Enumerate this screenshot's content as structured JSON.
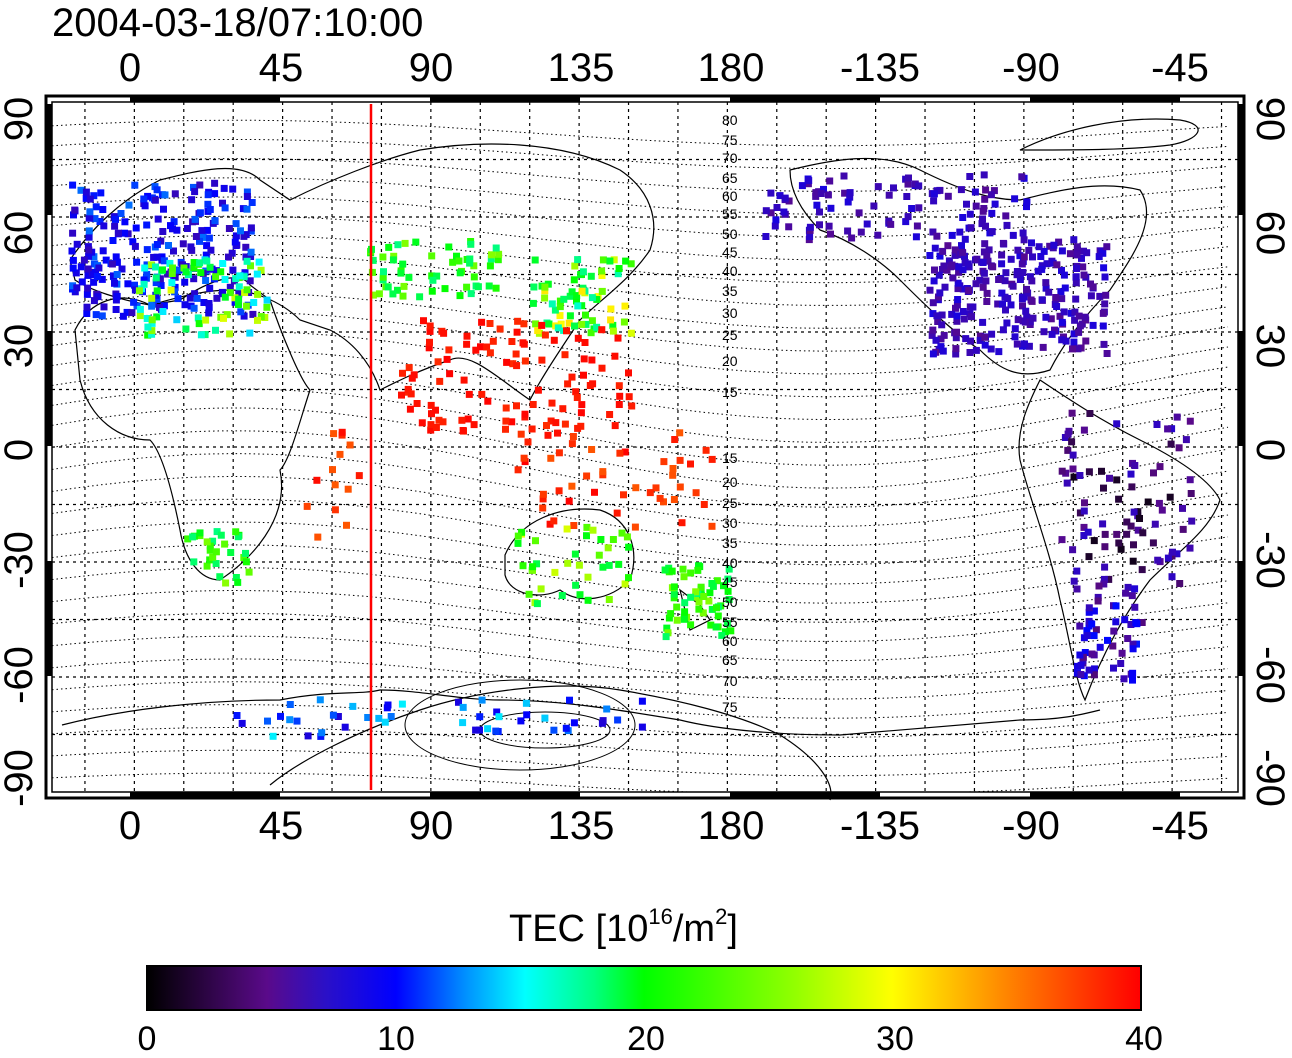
{
  "timestamp": "2004-03-18/07:10:00",
  "lon_labels": [
    "0",
    "45",
    "90",
    "135",
    "180",
    "-135",
    "-90",
    "-45"
  ],
  "lat_labels": [
    "90",
    "60",
    "30",
    "0",
    "-30",
    "-60",
    "-90"
  ],
  "contour_labels": [
    "80",
    "75",
    "70",
    "65",
    "60",
    "55",
    "50",
    "45",
    "40",
    "35",
    "30",
    "25",
    "20",
    "15",
    "15",
    "20",
    "25",
    "30",
    "35",
    "40",
    "45",
    "50",
    "55",
    "60",
    "65",
    "70",
    "75"
  ],
  "colorbar": {
    "title_main": "TEC  [10",
    "title_sup1": "16",
    "title_mid": "/m",
    "title_sup2": "2",
    "title_end": "]",
    "ticks": [
      "0",
      "10",
      "20",
      "30",
      "40"
    ],
    "min": 0,
    "max": 40,
    "colormap": [
      "#000000",
      "#5a0a8a",
      "#0000ff",
      "#00ffff",
      "#00ff00",
      "#ffff00",
      "#ff8000",
      "#ff0000"
    ]
  },
  "map": {
    "lon_range": [
      -25,
      335
    ],
    "lat_range": [
      -90,
      90
    ],
    "graticule_step_deg": 15,
    "projection": "equirectangular",
    "marker_line_lon": 73,
    "marker_line_color": "#ff0000"
  }
}
